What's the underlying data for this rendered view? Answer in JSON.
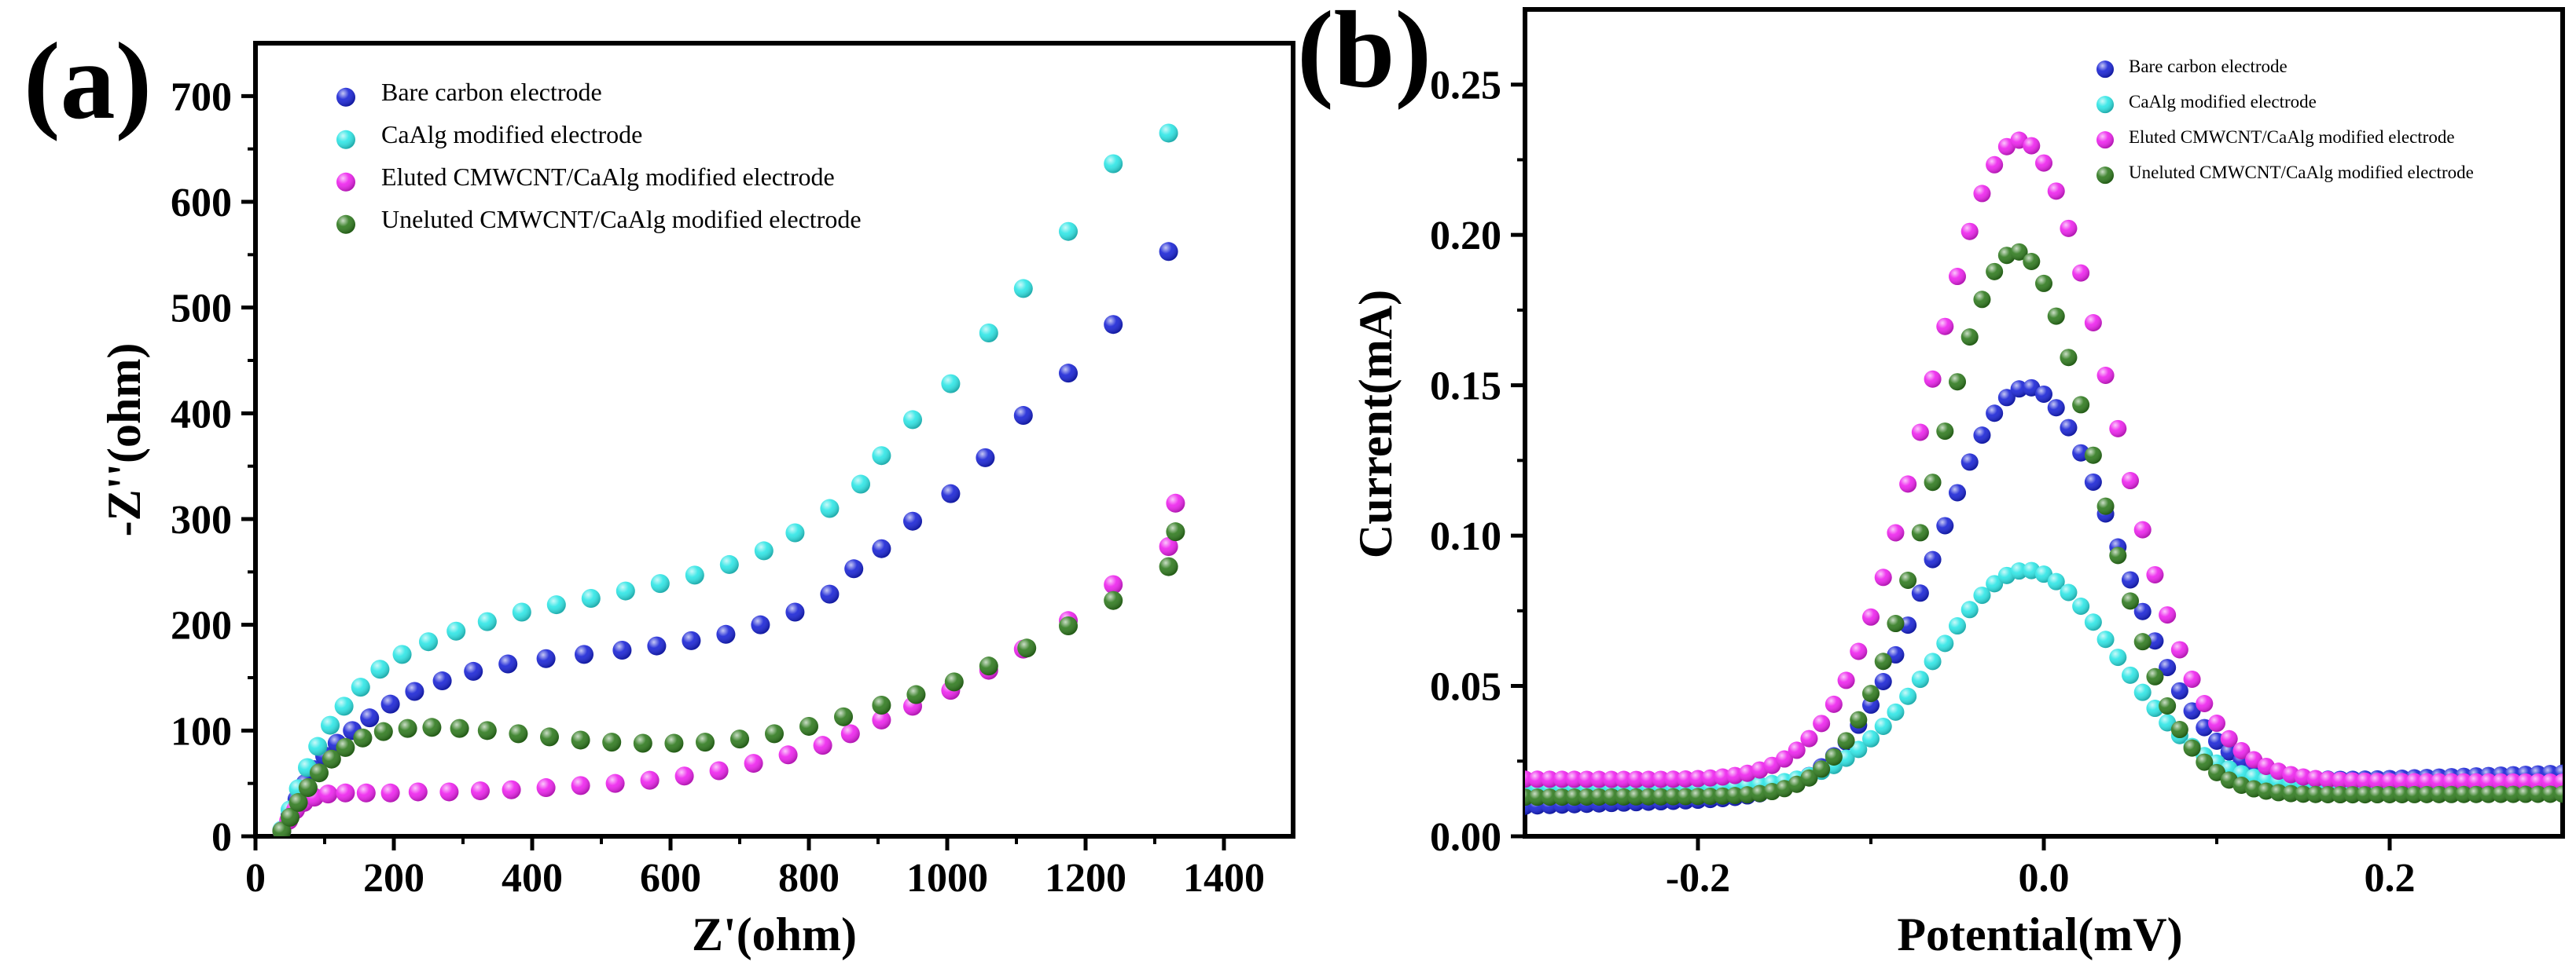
{
  "chart_data": [
    {
      "panel": "(a)",
      "type": "scatter",
      "title": "",
      "xlabel": "Z'(ohm)",
      "ylabel": "-Z''(ohm)",
      "xlim": [
        0,
        1500
      ],
      "ylim": [
        0,
        750
      ],
      "xticks": [
        0,
        200,
        400,
        600,
        800,
        1000,
        1200,
        1400
      ],
      "yticks": [
        0,
        100,
        200,
        300,
        400,
        500,
        600,
        700
      ],
      "legend_position": "top-left",
      "series": [
        {
          "name": "Bare carbon electrode",
          "color": "#1a24d6",
          "points": [
            [
              38,
              5
            ],
            [
              50,
              20
            ],
            [
              60,
              35
            ],
            [
              72,
              50
            ],
            [
              85,
              63
            ],
            [
              100,
              76
            ],
            [
              118,
              88
            ],
            [
              140,
              100
            ],
            [
              165,
              112
            ],
            [
              195,
              125
            ],
            [
              230,
              137
            ],
            [
              270,
              147
            ],
            [
              315,
              156
            ],
            [
              365,
              163
            ],
            [
              420,
              168
            ],
            [
              475,
              172
            ],
            [
              530,
              176
            ],
            [
              580,
              180
            ],
            [
              630,
              185
            ],
            [
              680,
              191
            ],
            [
              730,
              200
            ],
            [
              780,
              212
            ],
            [
              830,
              229
            ],
            [
              865,
              253
            ],
            [
              905,
              272
            ],
            [
              950,
              298
            ],
            [
              1005,
              324
            ],
            [
              1055,
              358
            ],
            [
              1110,
              398
            ],
            [
              1175,
              438
            ],
            [
              1240,
              484
            ],
            [
              1320,
              553
            ]
          ]
        },
        {
          "name": "CaAlg modified electrode",
          "color": "#2ee6e6",
          "points": [
            [
              38,
              6
            ],
            [
              50,
              25
            ],
            [
              62,
              45
            ],
            [
              75,
              65
            ],
            [
              90,
              85
            ],
            [
              108,
              105
            ],
            [
              128,
              123
            ],
            [
              152,
              141
            ],
            [
              180,
              158
            ],
            [
              212,
              172
            ],
            [
              250,
              184
            ],
            [
              290,
              194
            ],
            [
              335,
              203
            ],
            [
              385,
              212
            ],
            [
              435,
              219
            ],
            [
              485,
              225
            ],
            [
              535,
              232
            ],
            [
              585,
              239
            ],
            [
              635,
              247
            ],
            [
              685,
              257
            ],
            [
              735,
              270
            ],
            [
              780,
              287
            ],
            [
              830,
              310
            ],
            [
              875,
              333
            ],
            [
              905,
              360
            ],
            [
              950,
              394
            ],
            [
              1005,
              428
            ],
            [
              1060,
              476
            ],
            [
              1110,
              518
            ],
            [
              1175,
              572
            ],
            [
              1240,
              636
            ],
            [
              1320,
              665
            ]
          ]
        },
        {
          "name": "Eluted CMWCNT/CaAlg modified electrode",
          "color": "#ee22ee",
          "points": [
            [
              38,
              5
            ],
            [
              48,
              15
            ],
            [
              58,
              25
            ],
            [
              70,
              32
            ],
            [
              85,
              37
            ],
            [
              105,
              40
            ],
            [
              130,
              41
            ],
            [
              160,
              41
            ],
            [
              195,
              41
            ],
            [
              235,
              42
            ],
            [
              280,
              42
            ],
            [
              325,
              43
            ],
            [
              370,
              44
            ],
            [
              420,
              46
            ],
            [
              470,
              48
            ],
            [
              520,
              50
            ],
            [
              570,
              53
            ],
            [
              620,
              57
            ],
            [
              670,
              62
            ],
            [
              720,
              69
            ],
            [
              770,
              77
            ],
            [
              820,
              86
            ],
            [
              860,
              97
            ],
            [
              905,
              110
            ],
            [
              950,
              123
            ],
            [
              1005,
              138
            ],
            [
              1060,
              157
            ],
            [
              1110,
              177
            ],
            [
              1175,
              204
            ],
            [
              1240,
              238
            ],
            [
              1320,
              274
            ],
            [
              1330,
              315
            ]
          ]
        },
        {
          "name": "Uneluted CMWCNT/CaAlg modified electrode",
          "color": "#2f7a1e",
          "points": [
            [
              38,
              5
            ],
            [
              50,
              18
            ],
            [
              62,
              32
            ],
            [
              76,
              46
            ],
            [
              92,
              60
            ],
            [
              110,
              73
            ],
            [
              130,
              84
            ],
            [
              155,
              93
            ],
            [
              185,
              99
            ],
            [
              220,
              102
            ],
            [
              255,
              103
            ],
            [
              295,
              102
            ],
            [
              335,
              100
            ],
            [
              380,
              97
            ],
            [
              425,
              94
            ],
            [
              470,
              91
            ],
            [
              515,
              89
            ],
            [
              560,
              88
            ],
            [
              605,
              88
            ],
            [
              650,
              89
            ],
            [
              700,
              92
            ],
            [
              750,
              97
            ],
            [
              800,
              104
            ],
            [
              850,
              113
            ],
            [
              905,
              124
            ],
            [
              955,
              134
            ],
            [
              1010,
              146
            ],
            [
              1060,
              161
            ],
            [
              1115,
              178
            ],
            [
              1175,
              199
            ],
            [
              1240,
              223
            ],
            [
              1320,
              255
            ],
            [
              1330,
              288
            ]
          ]
        }
      ]
    },
    {
      "panel": "(b)",
      "type": "scatter",
      "title": "",
      "xlabel": "Potential(mV)",
      "ylabel": "Current(mA)",
      "xlim": [
        -0.3,
        0.3
      ],
      "ylim": [
        0,
        0.275
      ],
      "xticks": [
        -0.2,
        0.0,
        0.2
      ],
      "xtick_labels": [
        "-0.2",
        "0.0",
        "0.2"
      ],
      "yticks": [
        0.0,
        0.05,
        0.1,
        0.15,
        0.2,
        0.25
      ],
      "ytick_labels": [
        "0.00",
        "0.05",
        "0.10",
        "0.15",
        "0.20",
        "0.25"
      ],
      "legend_position": "top-right",
      "series": [
        {
          "name": "Bare carbon electrode",
          "color": "#1a24d6",
          "model": "gaussian",
          "peak_x": -0.01,
          "peak_height": 0.134,
          "sigma": 0.052,
          "baseline_left": 0.01,
          "baseline_right": 0.021,
          "points_count": 85
        },
        {
          "name": "CaAlg modified electrode",
          "color": "#2ee6e6",
          "model": "gaussian",
          "peak_x": -0.01,
          "peak_height": 0.072,
          "sigma": 0.052,
          "baseline_left": 0.016,
          "baseline_right": 0.017,
          "points_count": 85
        },
        {
          "name": "Eluted CMWCNT/CaAlg modified electrode",
          "color": "#ee22ee",
          "model": "gaussian",
          "peak_x": -0.014,
          "peak_height": 0.213,
          "sigma": 0.052,
          "baseline_left": 0.019,
          "baseline_right": 0.018,
          "points_count": 85
        },
        {
          "name": "Uneluted CMWCNT/CaAlg modified electrode",
          "color": "#2f7a1e",
          "model": "gaussian",
          "peak_x": -0.016,
          "peak_height": 0.181,
          "sigma": 0.046,
          "baseline_left": 0.013,
          "baseline_right": 0.014,
          "points_count": 85
        }
      ]
    }
  ]
}
